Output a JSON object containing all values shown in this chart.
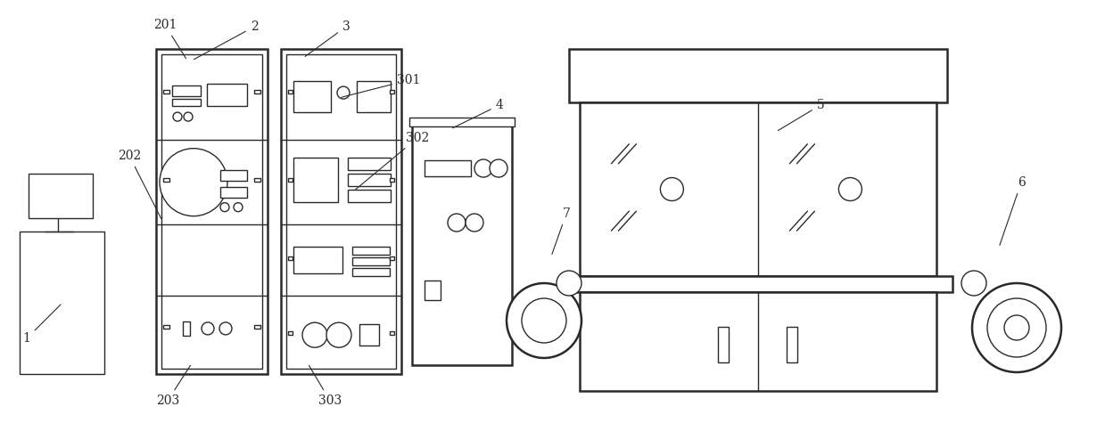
{
  "background_color": "#ffffff",
  "line_color": "#2a2a2a",
  "line_width": 1.8,
  "fig_width": 12.39,
  "fig_height": 4.84
}
